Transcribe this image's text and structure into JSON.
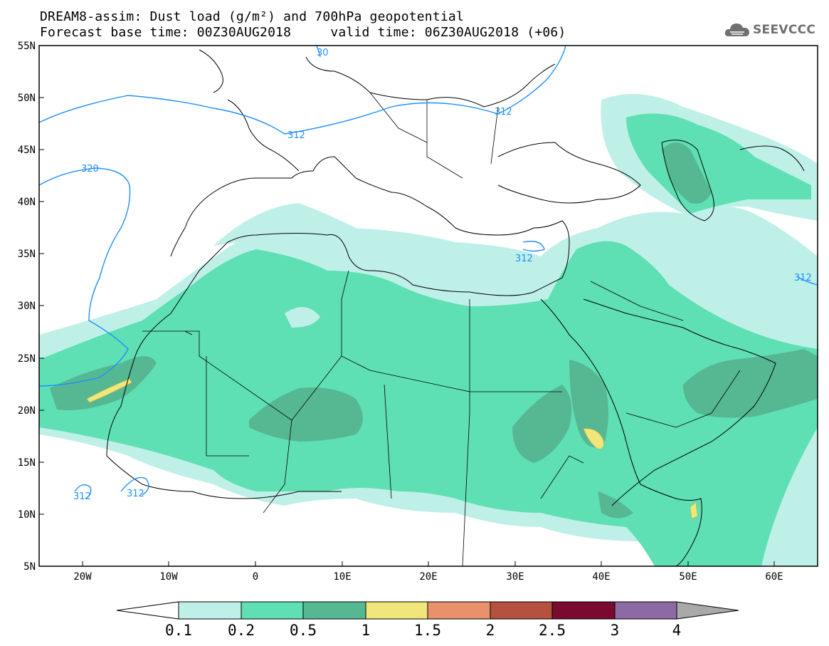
{
  "title_line1": "DREAM8-assim: Dust load (g/m²) and 700hPa geopotential",
  "title_line2": "Forecast base time: 00Z30AUG2018     valid time: 06Z30AUG2018 (+06)",
  "brand": {
    "name": "SEEVCCC",
    "icon": "cloud-logo-icon",
    "color": "#707070"
  },
  "map": {
    "lon_range": [
      -25,
      65
    ],
    "lat_range": [
      5,
      55
    ],
    "lat_ticks": [
      "55N",
      "50N",
      "45N",
      "40N",
      "35N",
      "30N",
      "25N",
      "20N",
      "15N",
      "10N",
      "5N"
    ],
    "lon_ticks": [
      "20W",
      "10W",
      "0",
      "10E",
      "20E",
      "30E",
      "40E",
      "50E",
      "60E"
    ]
  },
  "contours": {
    "color": "#1e90ff",
    "labels": [
      "312",
      "312",
      "312",
      "320",
      "312",
      "312",
      "312",
      "312",
      "30"
    ]
  },
  "colorbar": {
    "levels": [
      "0.1",
      "0.2",
      "0.5",
      "1",
      "1.5",
      "2",
      "2.5",
      "3",
      "4"
    ],
    "colors": [
      "#bff0e8",
      "#5fdfb4",
      "#56b892",
      "#f0e67a",
      "#e8916b",
      "#b4513f",
      "#7a0a2e",
      "#8e6aa5",
      "#a9a9a9"
    ],
    "under_color": "#ffffff",
    "over_color": "#a9a9a9"
  }
}
